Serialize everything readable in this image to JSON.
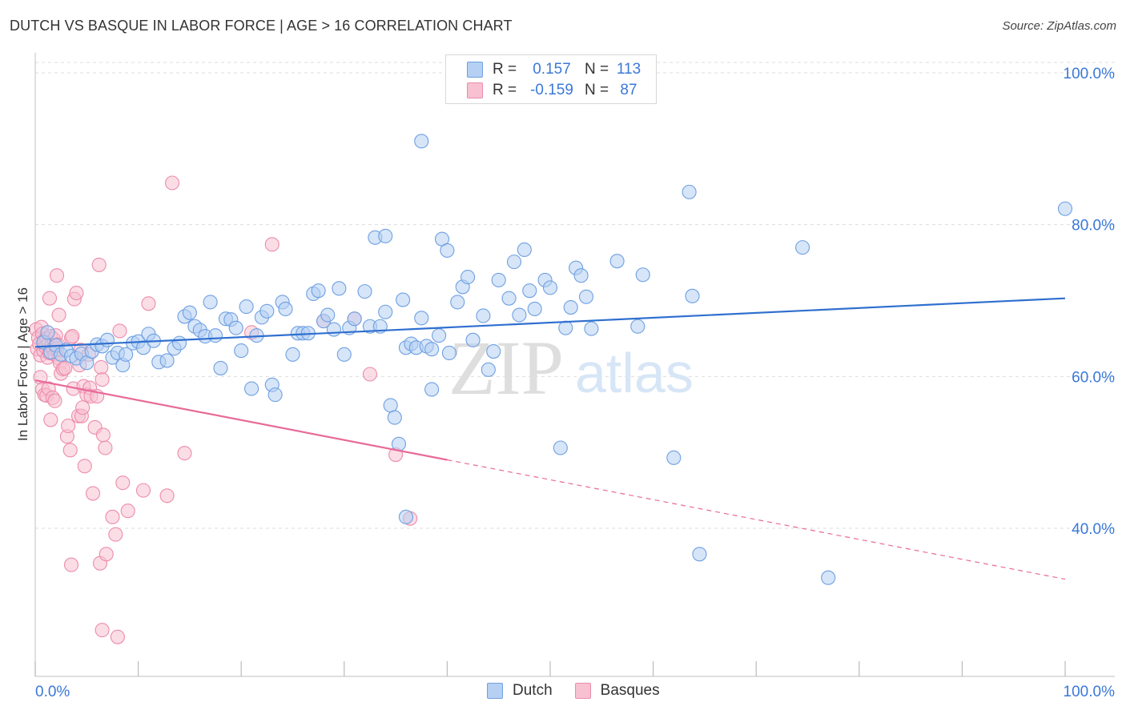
{
  "title": "DUTCH VS BASQUE IN LABOR FORCE | AGE > 16 CORRELATION CHART",
  "source": "Source: ZipAtlas.com",
  "watermark": {
    "zip": "ZIP",
    "atlas": "atlas"
  },
  "colors": {
    "dutch_fill": "#b5d0f2",
    "dutch_stroke": "#6fa0e2",
    "dutch_line": "#2f6fcf",
    "basque_fill": "#f7c1d2",
    "basque_stroke": "#ec8cab",
    "basque_line": "#e86a98",
    "accent_text": "#3b78d8",
    "grid": "#dddddd"
  },
  "legend": {
    "rows": [
      {
        "r_label": "R =",
        "r_value": "0.157",
        "n_label": "N =",
        "n_value": "113"
      },
      {
        "r_label": "R =",
        "r_value": "-0.159",
        "n_label": "N =",
        "n_value": "87"
      }
    ]
  },
  "bottom_legend": [
    "Dutch",
    "Basques"
  ],
  "chart_data": {
    "type": "scatter",
    "title": "DUTCH VS BASQUE IN LABOR FORCE | AGE > 16 CORRELATION CHART",
    "xlabel": "",
    "ylabel": "In Labor Force | Age > 16",
    "xlim": [
      0,
      100
    ],
    "ylim": [
      20.5,
      102
    ],
    "x_tick_labels": [
      "0.0%",
      "100.0%"
    ],
    "y_ticks": [
      40,
      60,
      80,
      100
    ],
    "y_tick_labels": [
      "40.0%",
      "60.0%",
      "80.0%",
      "100.0%"
    ],
    "grid": true,
    "legend_position": "top-center",
    "series": [
      {
        "name": "Dutch",
        "r": 0.157,
        "n": 113,
        "trend": {
          "x": [
            0.0,
            100.0
          ],
          "y": [
            63.9,
            70.3
          ],
          "solid_to_x": 100.0
        },
        "points": [
          [
            0.8,
            64.5
          ],
          [
            1.2,
            65.8
          ],
          [
            1.5,
            63.2
          ],
          [
            2.0,
            64.1
          ],
          [
            2.5,
            62.9
          ],
          [
            3.0,
            63.5
          ],
          [
            3.5,
            62.7
          ],
          [
            4.0,
            62.4
          ],
          [
            4.5,
            63.0
          ],
          [
            5.0,
            61.8
          ],
          [
            5.5,
            63.3
          ],
          [
            6.0,
            64.2
          ],
          [
            6.5,
            64.0
          ],
          [
            7.0,
            64.8
          ],
          [
            7.5,
            62.5
          ],
          [
            8.0,
            63.1
          ],
          [
            8.5,
            61.5
          ],
          [
            8.8,
            62.9
          ],
          [
            9.5,
            64.4
          ],
          [
            10.0,
            64.6
          ],
          [
            10.5,
            63.8
          ],
          [
            11.0,
            65.6
          ],
          [
            11.5,
            64.7
          ],
          [
            12.0,
            61.9
          ],
          [
            12.8,
            62.1
          ],
          [
            13.5,
            63.7
          ],
          [
            14.0,
            64.4
          ],
          [
            14.5,
            67.9
          ],
          [
            15.0,
            68.4
          ],
          [
            15.5,
            66.6
          ],
          [
            16.0,
            66.1
          ],
          [
            16.5,
            65.3
          ],
          [
            17.0,
            69.8
          ],
          [
            17.5,
            65.4
          ],
          [
            18.0,
            61.1
          ],
          [
            18.5,
            67.6
          ],
          [
            19.0,
            67.5
          ],
          [
            19.5,
            66.4
          ],
          [
            20.0,
            63.4
          ],
          [
            20.5,
            69.2
          ],
          [
            21.0,
            58.4
          ],
          [
            21.5,
            65.4
          ],
          [
            22.0,
            67.8
          ],
          [
            22.5,
            68.6
          ],
          [
            23.0,
            58.9
          ],
          [
            23.3,
            57.6
          ],
          [
            24.0,
            69.8
          ],
          [
            24.3,
            68.9
          ],
          [
            25.0,
            62.9
          ],
          [
            25.5,
            65.7
          ],
          [
            26.0,
            65.7
          ],
          [
            26.5,
            65.7
          ],
          [
            27.0,
            70.9
          ],
          [
            27.5,
            71.3
          ],
          [
            28.0,
            67.3
          ],
          [
            28.4,
            68.1
          ],
          [
            29.0,
            66.2
          ],
          [
            29.5,
            71.6
          ],
          [
            30.0,
            62.9
          ],
          [
            30.5,
            66.4
          ],
          [
            31.0,
            67.6
          ],
          [
            32.0,
            71.2
          ],
          [
            32.5,
            66.6
          ],
          [
            33.0,
            78.3
          ],
          [
            33.5,
            66.6
          ],
          [
            34.0,
            68.5
          ],
          [
            34.5,
            56.2
          ],
          [
            34.9,
            54.6
          ],
          [
            35.3,
            51.1
          ],
          [
            35.7,
            70.1
          ],
          [
            36.0,
            63.8
          ],
          [
            36.5,
            64.3
          ],
          [
            37.0,
            63.8
          ],
          [
            37.5,
            67.7
          ],
          [
            38.0,
            64.0
          ],
          [
            38.5,
            63.6
          ],
          [
            34.0,
            78.5
          ],
          [
            36.0,
            41.5
          ],
          [
            37.5,
            91.0
          ],
          [
            38.5,
            58.3
          ],
          [
            39.2,
            65.4
          ],
          [
            39.5,
            78.1
          ],
          [
            40.0,
            76.6
          ],
          [
            40.2,
            63.1
          ],
          [
            41.0,
            69.8
          ],
          [
            41.5,
            71.8
          ],
          [
            42.0,
            73.1
          ],
          [
            42.5,
            64.8
          ],
          [
            43.5,
            68.0
          ],
          [
            44.0,
            60.9
          ],
          [
            44.5,
            63.3
          ],
          [
            45.0,
            72.7
          ],
          [
            46.0,
            70.3
          ],
          [
            46.5,
            75.1
          ],
          [
            47.0,
            68.1
          ],
          [
            47.5,
            76.7
          ],
          [
            48.0,
            71.3
          ],
          [
            48.5,
            68.9
          ],
          [
            49.5,
            72.7
          ],
          [
            50.0,
            71.7
          ],
          [
            51.0,
            50.6
          ],
          [
            51.5,
            66.4
          ],
          [
            52.0,
            69.1
          ],
          [
            52.5,
            74.3
          ],
          [
            53.0,
            73.3
          ],
          [
            53.5,
            70.5
          ],
          [
            54.0,
            66.3
          ],
          [
            56.5,
            75.2
          ],
          [
            58.5,
            66.6
          ],
          [
            59.0,
            73.4
          ],
          [
            62.0,
            49.3
          ],
          [
            63.5,
            84.3
          ],
          [
            63.8,
            70.6
          ],
          [
            64.5,
            36.6
          ],
          [
            74.5,
            77.0
          ],
          [
            77.0,
            33.5
          ],
          [
            100.0,
            82.1
          ]
        ]
      },
      {
        "name": "Basques",
        "r": -0.159,
        "n": 87,
        "trend": {
          "x": [
            0.0,
            100.0
          ],
          "y": [
            59.5,
            33.3
          ],
          "solid_to_x": 40.0
        },
        "points": [
          [
            0.1,
            66.2
          ],
          [
            0.2,
            63.6
          ],
          [
            0.3,
            65.1
          ],
          [
            0.4,
            64.3
          ],
          [
            0.5,
            62.8
          ],
          [
            0.6,
            66.5
          ],
          [
            0.7,
            65.6
          ],
          [
            0.8,
            63.4
          ],
          [
            0.9,
            64.7
          ],
          [
            1.0,
            63.9
          ],
          [
            1.1,
            65.0
          ],
          [
            1.2,
            62.5
          ],
          [
            1.3,
            64.4
          ],
          [
            1.4,
            63.1
          ],
          [
            1.5,
            65.3
          ],
          [
            1.6,
            64.1
          ],
          [
            1.7,
            63.7
          ],
          [
            1.8,
            64.9
          ],
          [
            1.9,
            62.9
          ],
          [
            2.0,
            65.4
          ],
          [
            2.1,
            63.6
          ],
          [
            2.2,
            64.2
          ],
          [
            2.3,
            62.4
          ],
          [
            2.4,
            61.8
          ],
          [
            0.5,
            59.9
          ],
          [
            0.7,
            58.3
          ],
          [
            0.9,
            57.6
          ],
          [
            1.1,
            57.5
          ],
          [
            1.3,
            58.4
          ],
          [
            1.5,
            54.3
          ],
          [
            1.7,
            57.2
          ],
          [
            1.9,
            56.8
          ],
          [
            2.1,
            73.3
          ],
          [
            2.3,
            68.1
          ],
          [
            2.5,
            60.4
          ],
          [
            2.7,
            61.0
          ],
          [
            1.4,
            70.3
          ],
          [
            2.9,
            61.1
          ],
          [
            3.1,
            52.1
          ],
          [
            3.2,
            53.5
          ],
          [
            3.4,
            50.3
          ],
          [
            3.5,
            65.1
          ],
          [
            3.6,
            65.3
          ],
          [
            3.8,
            70.2
          ],
          [
            4.0,
            71.0
          ],
          [
            3.7,
            58.4
          ],
          [
            4.2,
            54.8
          ],
          [
            4.3,
            61.5
          ],
          [
            4.4,
            63.5
          ],
          [
            4.5,
            54.8
          ],
          [
            4.6,
            55.9
          ],
          [
            4.7,
            58.7
          ],
          [
            4.8,
            48.2
          ],
          [
            5.0,
            57.6
          ],
          [
            5.2,
            62.9
          ],
          [
            5.3,
            58.5
          ],
          [
            5.4,
            57.4
          ],
          [
            5.6,
            44.6
          ],
          [
            5.8,
            53.3
          ],
          [
            6.0,
            57.4
          ],
          [
            6.2,
            74.7
          ],
          [
            6.4,
            61.2
          ],
          [
            6.5,
            59.6
          ],
          [
            6.6,
            52.3
          ],
          [
            6.8,
            50.6
          ],
          [
            3.5,
            35.2
          ],
          [
            6.3,
            35.4
          ],
          [
            6.5,
            26.6
          ],
          [
            6.9,
            36.6
          ],
          [
            7.5,
            41.5
          ],
          [
            7.8,
            39.2
          ],
          [
            8.0,
            25.7
          ],
          [
            8.5,
            46.0
          ],
          [
            8.2,
            66.0
          ],
          [
            9.0,
            42.3
          ],
          [
            10.5,
            45.0
          ],
          [
            11.0,
            69.6
          ],
          [
            12.8,
            44.3
          ],
          [
            13.3,
            85.5
          ],
          [
            14.5,
            49.9
          ],
          [
            21.0,
            65.8
          ],
          [
            23.0,
            77.4
          ],
          [
            28.0,
            67.3
          ],
          [
            31.0,
            67.6
          ],
          [
            32.5,
            60.3
          ],
          [
            35.0,
            49.7
          ],
          [
            36.4,
            41.3
          ]
        ]
      }
    ]
  }
}
